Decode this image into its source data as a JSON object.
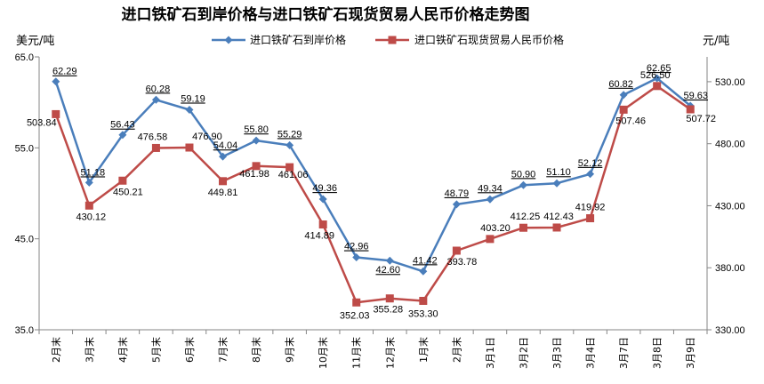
{
  "chart_data": {
    "type": "line",
    "title": "进口铁矿石到岸价格与进口铁矿石现货贸易人民币价格走势图",
    "y_left_label": "美元/吨",
    "y_right_label": "元/吨",
    "categories": [
      "2月末",
      "3月末",
      "4月末",
      "5月末",
      "6月末",
      "7月末",
      "8月末",
      "9月末",
      "10月末",
      "11月末",
      "12月末",
      "1月末",
      "2月末",
      "3月1日",
      "3月2日",
      "3月3日",
      "3月4日",
      "3月7日",
      "3月8日",
      "3月9日"
    ],
    "y_left_lim": [
      35.0,
      65.0
    ],
    "y_left_ticks": [
      "35.0",
      "45.0",
      "55.0",
      "65.0"
    ],
    "y_right_lim": [
      330.0,
      550.0
    ],
    "y_right_ticks": [
      "330.00",
      "380.00",
      "430.00",
      "480.00",
      "530.00"
    ],
    "series": [
      {
        "name": "进口铁矿石到岸价格",
        "axis": "left",
        "color": "#4a7ebb",
        "marker": "diamond",
        "values": [
          62.29,
          51.18,
          56.43,
          60.28,
          59.19,
          54.04,
          55.8,
          55.29,
          49.36,
          42.96,
          42.6,
          41.42,
          48.79,
          49.34,
          50.9,
          51.1,
          52.12,
          60.82,
          62.65,
          59.63
        ],
        "labels": [
          "62.29",
          "51.18",
          "56.43",
          "60.28",
          "59.19",
          "54.04",
          "55.80",
          "55.29",
          "49.36",
          "42.96",
          "42.60",
          "41.42",
          "48.79",
          "49.34",
          "50.90",
          "51.10",
          "52.12",
          "60.82",
          "62.65",
          "59.63"
        ]
      },
      {
        "name": "进口铁矿石现货贸易人民币价格",
        "axis": "right",
        "color": "#be4b48",
        "marker": "square",
        "values": [
          503.84,
          430.12,
          450.21,
          476.58,
          476.9,
          449.81,
          461.98,
          461.06,
          414.89,
          352.03,
          355.28,
          353.3,
          393.78,
          403.2,
          412.25,
          412.43,
          419.92,
          507.46,
          526.5,
          507.72
        ],
        "labels": [
          "503.84",
          "430.12",
          "450.21",
          "476.58",
          "476.90",
          "449.81",
          "461.98",
          "461.06",
          "414.89",
          "352.03",
          "355.28",
          "353.30",
          "393.78",
          "403.20",
          "412.25",
          "412.43",
          "419.92",
          "507.46",
          "526.50",
          "507.72"
        ]
      }
    ],
    "grid": false,
    "legend_position": "top"
  }
}
